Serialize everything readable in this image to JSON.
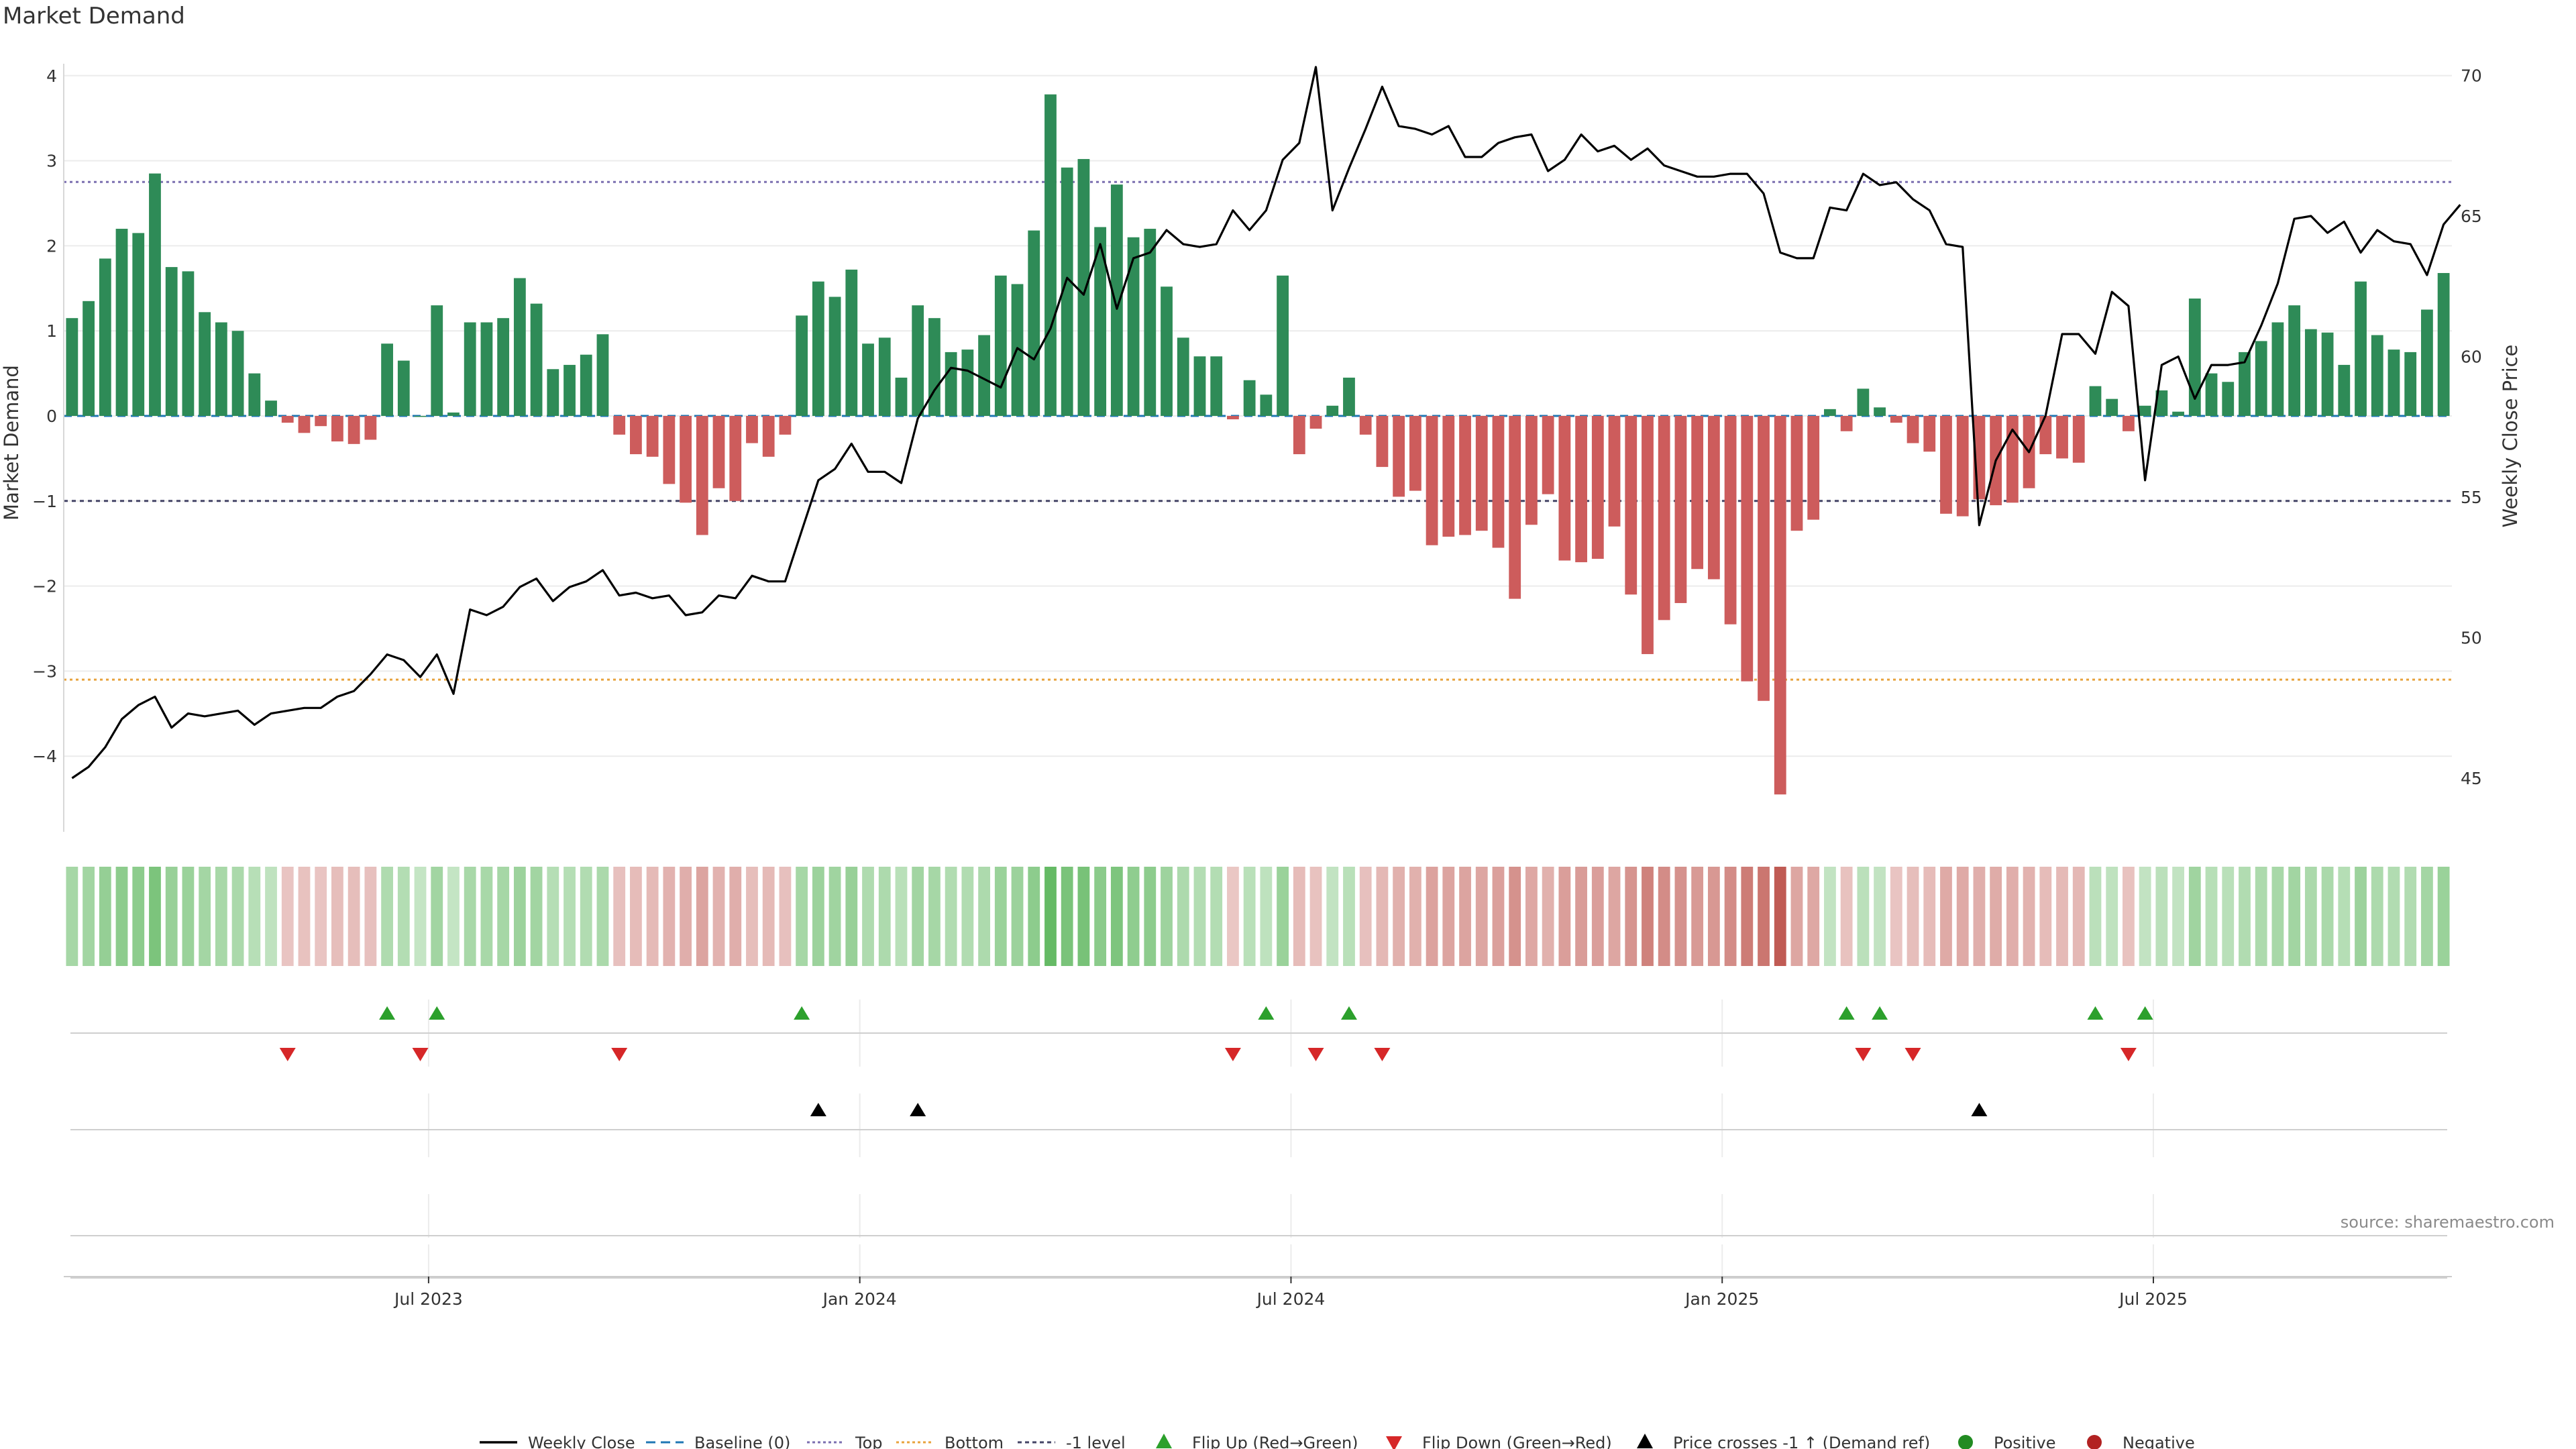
{
  "title": "Market Demand",
  "source_text": "source: sharemaestro.com",
  "colors": {
    "positive_bar": "#2e8b57",
    "negative_bar": "#cd5c5c",
    "price_line": "#000000",
    "baseline": "#1f77b4",
    "top_line": "#7b6fb0",
    "bottom_line": "#e8a33d",
    "minus1_line": "#444466",
    "flip_up": "#2ca02c",
    "flip_down": "#d62728",
    "cross_marker": "#000000",
    "positive_dot": "#228b22",
    "negative_dot": "#b22222"
  },
  "chart_data": {
    "type": "bar+line",
    "title": "Market Demand",
    "ylabel_left": "Market Demand",
    "ylabel_right": "Weekly Close Price",
    "ylim_left": [
      -4.5,
      4.1
    ],
    "yticks_left": [
      "4",
      "3",
      "2",
      "1",
      "0",
      "−1",
      "−2",
      "−3",
      "−4"
    ],
    "ylim_right": [
      44,
      70.5
    ],
    "yticks_right": [
      "70",
      "65",
      "60",
      "55",
      "50",
      "45"
    ],
    "x_tick_labels": [
      "Jul 2023",
      "Jan 2024",
      "Jul 2024",
      "Jan 2025",
      "Jul 2025"
    ],
    "x_tick_index": [
      22,
      48,
      74,
      100,
      126
    ],
    "reference_lines": {
      "top": 2.75,
      "bottom": -3.1,
      "minus1": -1.0,
      "baseline": 0
    },
    "demand": [
      1.15,
      1.35,
      1.85,
      2.2,
      2.15,
      2.85,
      1.75,
      1.7,
      1.22,
      1.1,
      1.0,
      0.5,
      0.18,
      -0.08,
      -0.2,
      -0.12,
      -0.3,
      -0.33,
      -0.28,
      0.85,
      0.65,
      0.0,
      1.3,
      0.04,
      1.1,
      1.1,
      1.15,
      1.62,
      1.32,
      0.55,
      0.6,
      0.72,
      0.96,
      -0.22,
      -0.45,
      -0.48,
      -0.8,
      -1.02,
      -1.4,
      -0.85,
      -1.0,
      -0.32,
      -0.48,
      -0.22,
      1.18,
      1.58,
      1.4,
      1.72,
      0.85,
      0.92,
      0.45,
      1.3,
      1.15,
      0.75,
      0.78,
      0.95,
      1.65,
      1.55,
      2.18,
      3.78,
      2.92,
      3.02,
      2.22,
      2.72,
      2.1,
      2.2,
      1.52,
      0.92,
      0.7,
      0.7,
      -0.04,
      0.42,
      0.25,
      1.65,
      -0.45,
      -0.15,
      0.12,
      0.45,
      -0.22,
      -0.6,
      -0.95,
      -0.88,
      -1.52,
      -1.42,
      -1.4,
      -1.35,
      -1.55,
      -2.15,
      -1.28,
      -0.92,
      -1.7,
      -1.72,
      -1.68,
      -1.3,
      -2.1,
      -2.8,
      -2.4,
      -2.2,
      -1.8,
      -1.92,
      -2.45,
      -3.12,
      -3.35,
      -4.45,
      -1.35,
      -1.22,
      0.08,
      -0.18,
      0.32,
      0.1,
      -0.08,
      -0.32,
      -0.42,
      -1.15,
      -1.18,
      -0.98,
      -1.05,
      -1.02,
      -0.85,
      -0.45,
      -0.5,
      -0.55,
      0.35,
      0.2,
      -0.18,
      0.12,
      0.3,
      0.05,
      1.38,
      0.5,
      0.4,
      0.75,
      0.88,
      1.1,
      1.3,
      1.02,
      0.98,
      0.6,
      1.58,
      0.95,
      0.78,
      0.75,
      1.25,
      1.68
    ],
    "price": [
      45.0,
      45.4,
      46.1,
      47.1,
      47.6,
      47.9,
      46.8,
      47.3,
      47.2,
      47.3,
      47.4,
      46.9,
      47.3,
      47.4,
      47.5,
      47.5,
      47.9,
      48.1,
      48.7,
      49.4,
      49.2,
      48.6,
      49.4,
      48.0,
      51.0,
      50.8,
      51.1,
      51.8,
      52.1,
      51.3,
      51.8,
      52.0,
      52.4,
      51.5,
      51.6,
      51.4,
      51.5,
      50.8,
      50.9,
      51.5,
      51.4,
      52.2,
      52.0,
      52.0,
      53.8,
      55.6,
      56.0,
      56.9,
      55.9,
      55.9,
      55.5,
      57.8,
      58.8,
      59.6,
      59.5,
      59.2,
      58.9,
      60.3,
      59.9,
      61.0,
      62.8,
      62.2,
      64.0,
      61.7,
      63.5,
      63.7,
      64.5,
      64.0,
      63.9,
      64.0,
      65.2,
      64.5,
      65.2,
      67.0,
      67.6,
      70.3,
      65.2,
      66.7,
      68.1,
      69.6,
      68.2,
      68.1,
      67.9,
      68.2,
      67.1,
      67.1,
      67.6,
      67.8,
      67.9,
      66.6,
      67.0,
      67.9,
      67.3,
      67.5,
      67.0,
      67.4,
      66.8,
      66.6,
      66.4,
      66.4,
      66.5,
      66.5,
      65.8,
      63.7,
      63.5,
      63.5,
      65.3,
      65.2,
      66.5,
      66.1,
      66.2,
      65.6,
      65.2,
      64.0,
      63.9,
      54.0,
      56.3,
      57.4,
      56.6,
      57.9,
      60.8,
      60.8,
      60.1,
      62.3,
      61.8,
      55.6,
      59.7,
      60.0,
      58.5,
      59.7,
      59.7,
      59.8,
      61.1,
      62.6,
      64.9,
      65.0,
      64.4,
      64.8,
      63.7,
      64.5,
      64.1,
      64.0,
      62.9,
      64.7,
      65.4
    ],
    "flip_up_index": [
      19,
      22,
      44,
      72,
      77,
      107,
      109,
      122,
      125
    ],
    "flip_down_index": [
      13,
      21,
      33,
      70,
      75,
      79,
      108,
      111,
      124
    ],
    "price_cross_index": [
      45,
      51,
      115
    ],
    "legend": [
      "Weekly Close",
      "Baseline (0)",
      "Top",
      "Bottom",
      "-1 level",
      "Flip Up (Red→Green)",
      "Flip Down (Green→Red)",
      "Price crosses -1 ↑ (Demand ref)",
      "Positive",
      "Negative"
    ]
  }
}
